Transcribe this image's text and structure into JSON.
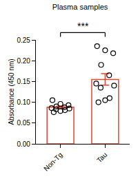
{
  "chart_data": {
    "type": "bar",
    "title": "Plasma samples",
    "y_label": "Absorbance (450 nm)",
    "categories": [
      "Non-Tg",
      "Tau"
    ],
    "values": [
      0.088,
      0.155
    ],
    "errors": [
      0.003,
      0.014
    ],
    "points": [
      [
        0.105,
        0.096,
        0.093,
        0.09,
        0.088,
        0.086,
        0.085,
        0.083,
        0.081,
        0.079,
        0.076
      ],
      [
        0.235,
        0.225,
        0.218,
        0.19,
        0.165,
        0.145,
        0.14,
        0.135,
        0.11,
        0.105,
        0.1
      ]
    ],
    "color": "#e8452c",
    "marker": "circle-open",
    "ylim": [
      0,
      0.25
    ],
    "yticks": [
      {
        "value": 0,
        "label": "0.00"
      },
      {
        "value": 0.05,
        "label": "0.05"
      },
      {
        "value": 0.1,
        "label": "0.10"
      },
      {
        "value": 0.15,
        "label": "0.15"
      },
      {
        "value": 0.2,
        "label": "0.20"
      },
      {
        "value": 0.25,
        "label": "0.25"
      }
    ],
    "annotations": [
      "***"
    ],
    "grid": false
  }
}
